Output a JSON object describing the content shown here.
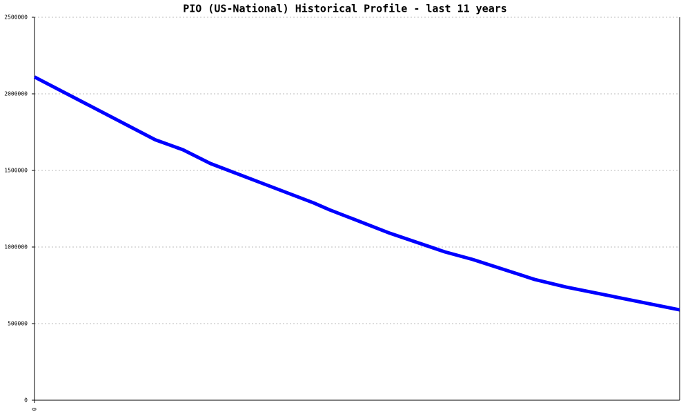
{
  "chart_data": {
    "type": "line",
    "title": "PIO (US-National) Historical Profile - last 11 years",
    "x": [
      0,
      2.06,
      2.53,
      3.0,
      4.76,
      5.03,
      6.06,
      7.0,
      7.47,
      8.53,
      9.06,
      11
    ],
    "series": [
      {
        "color": "#0000ff",
        "values": [
          2110000,
          1700000,
          1635000,
          1545000,
          1288000,
          1243000,
          1090000,
          968000,
          919000,
          788000,
          739000,
          590000
        ]
      }
    ],
    "xlim": [
      0,
      11
    ],
    "xticks": [
      0
    ],
    "ylim": [
      0,
      2500000
    ],
    "yticks": [
      0,
      500000,
      1000000,
      1500000,
      2000000,
      2500000
    ],
    "grid": true
  }
}
